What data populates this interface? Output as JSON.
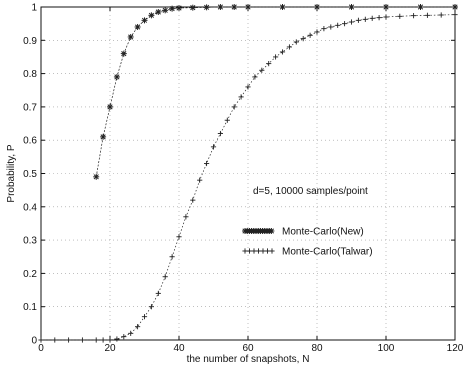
{
  "chart_data": {
    "type": "line",
    "title": "",
    "xlabel": "the number of snapshots, N",
    "ylabel": "Probability, P",
    "xlim": [
      0,
      120
    ],
    "ylim": [
      0,
      1
    ],
    "xticks": [
      0,
      20,
      40,
      60,
      80,
      100,
      120
    ],
    "yticks": [
      0,
      0.1,
      0.2,
      0.3,
      0.4,
      0.5,
      0.6,
      0.7,
      0.8,
      0.9,
      1
    ],
    "ytick_labels": [
      "0",
      "0.1",
      "0.2",
      "0.3",
      "0.4",
      "0.5",
      "0.6",
      "0.7",
      "0.8",
      "0.9",
      "1"
    ],
    "grid": true,
    "annotation": "d=5, 10000 samples/point",
    "legend": {
      "placement": "middle-right"
    },
    "series": [
      {
        "name": "Monte-Carlo(New)",
        "marker": "*",
        "color": "#222222",
        "x": [
          16,
          18,
          20,
          22,
          24,
          26,
          28,
          30,
          32,
          34,
          36,
          38,
          40,
          44,
          48,
          52,
          56,
          60,
          70,
          80,
          90,
          100,
          110,
          120
        ],
        "y": [
          0.49,
          0.61,
          0.7,
          0.79,
          0.86,
          0.91,
          0.94,
          0.96,
          0.975,
          0.985,
          0.99,
          0.995,
          0.997,
          0.998,
          0.999,
          1,
          1,
          1,
          1,
          1,
          1,
          1,
          1,
          1
        ]
      },
      {
        "name": "Monte-Carlo(Talwar)",
        "marker": "+",
        "color": "#222222",
        "x": [
          0,
          4,
          8,
          12,
          16,
          18,
          20,
          22,
          24,
          26,
          28,
          30,
          32,
          34,
          36,
          38,
          40,
          42,
          44,
          46,
          48,
          50,
          52,
          54,
          56,
          58,
          60,
          62,
          64,
          66,
          68,
          70,
          72,
          74,
          76,
          78,
          80,
          82,
          84,
          86,
          88,
          90,
          92,
          94,
          96,
          98,
          100,
          104,
          108,
          112,
          116,
          120
        ],
        "y": [
          0,
          0,
          0,
          0,
          0,
          0,
          0,
          0.003,
          0.01,
          0.02,
          0.04,
          0.07,
          0.1,
          0.14,
          0.19,
          0.25,
          0.31,
          0.37,
          0.42,
          0.48,
          0.53,
          0.58,
          0.62,
          0.66,
          0.7,
          0.73,
          0.76,
          0.79,
          0.81,
          0.83,
          0.85,
          0.865,
          0.88,
          0.895,
          0.905,
          0.915,
          0.925,
          0.935,
          0.94,
          0.945,
          0.95,
          0.955,
          0.96,
          0.963,
          0.966,
          0.968,
          0.97,
          0.972,
          0.974,
          0.975,
          0.976,
          0.977
        ]
      }
    ]
  }
}
